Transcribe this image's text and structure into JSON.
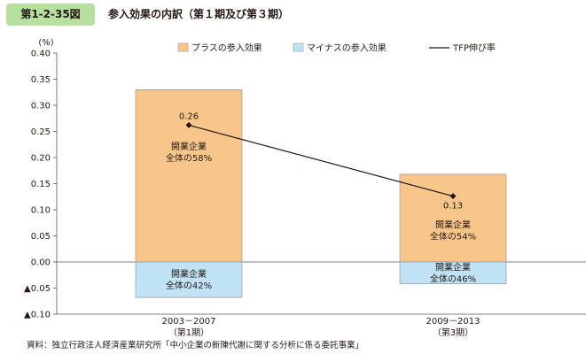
{
  "header": {
    "figure_number": "第1-2-35図",
    "title": "参入効果の内訳（第１期及び第３期）"
  },
  "source": "資料：独立行政法人経済産業研究所「中小企業の新陳代謝に関する分析に係る委託事業」",
  "colors": {
    "positive": "#f9c68a",
    "negative": "#bfe2f5",
    "bar_border": "#8a8a8a",
    "line": "#231815",
    "badge": "#b7dfa0"
  },
  "chart_data": {
    "type": "bar",
    "stacked": true,
    "title": "",
    "ylabel": "(%)",
    "ylim": [
      -0.1,
      0.4
    ],
    "yticks": [
      -0.1,
      -0.05,
      0.0,
      0.05,
      0.1,
      0.15,
      0.2,
      0.25,
      0.3,
      0.35,
      0.4
    ],
    "ytick_labels": [
      "▲0.10",
      "▲0.05",
      "0.00",
      "0.05",
      "0.10",
      "0.15",
      "0.20",
      "0.25",
      "0.30",
      "0.35",
      "0.40"
    ],
    "categories": [
      {
        "line1": "2003－2007",
        "line2": "（第1期）"
      },
      {
        "line1": "2009－2013",
        "line2": "（第3期）"
      }
    ],
    "legend_position": "top",
    "series": [
      {
        "name": "プラスの参入効果",
        "values": [
          0.33,
          0.168
        ],
        "labels": [
          {
            "line1": "開業企業",
            "line2": "全体の58%"
          },
          {
            "line1": "開業企業",
            "line2": "全体の54%"
          }
        ]
      },
      {
        "name": "マイナスの参入効果",
        "values": [
          -0.068,
          -0.042
        ],
        "labels": [
          {
            "line1": "開業企業",
            "line2": "全体の42%"
          },
          {
            "line1": "開業企業",
            "line2": "全体の46%"
          }
        ]
      },
      {
        "name": "TFP伸び率",
        "type": "line",
        "values": [
          0.262,
          0.126
        ],
        "value_labels": [
          "0.26",
          "0.13"
        ]
      }
    ]
  }
}
